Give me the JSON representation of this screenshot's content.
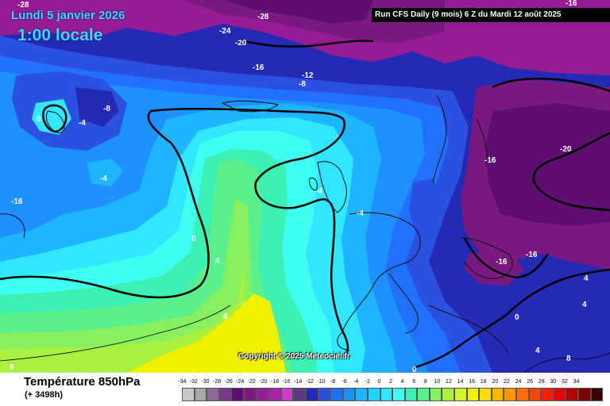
{
  "header": {
    "date": "Lundi 5 janvier 2026",
    "time": "1:00 locale",
    "run_info": "Run CFS Daily (9 mois) 6 Z du Mardi 12 août 2025"
  },
  "copyright": "Copyright © 2025 Meteociel.fr",
  "footer": {
    "parameter": "Température 850hPa",
    "lead": "(+ 3498h)"
  },
  "scale": {
    "labels": [
      "-34",
      "-32",
      "-30",
      "-28",
      "-26",
      "-24",
      "-22",
      "-20",
      "-18",
      "-16",
      "-14",
      "-12",
      "-10",
      "-8",
      "-6",
      "-4",
      "-2",
      "0",
      "2",
      "4",
      "6",
      "8",
      "10",
      "12",
      "14",
      "16",
      "18",
      "20",
      "22",
      "24",
      "26",
      "28",
      "30",
      "32",
      "34"
    ],
    "colors": [
      "#c8c8c8",
      "#a8a8a8",
      "#8c6a96",
      "#7a3a8a",
      "#5e0e6e",
      "#7a1a80",
      "#961c96",
      "#ad1fad",
      "#ce3cce",
      "#5a3a80",
      "#252ab4",
      "#2c50e0",
      "#2270ff",
      "#1e90ff",
      "#1eb4ff",
      "#23d0ff",
      "#33e6ff",
      "#3ffff0",
      "#3cf0b4",
      "#5af08c",
      "#86f060",
      "#aaf040",
      "#d4f428",
      "#f0f000",
      "#ffdc00",
      "#ffb400",
      "#ff9600",
      "#ff6e00",
      "#ff4600",
      "#ff1e00",
      "#e60000",
      "#b40000",
      "#780000",
      "#3c0000"
    ]
  },
  "map": {
    "colors": {
      "cold_extreme": "#5e0e6e",
      "cold_purple": "#7a1a80",
      "violet": "#961c96",
      "navy": "#252ab4",
      "blue_dark": "#2c50e0",
      "blue": "#2270ff",
      "blue_mid": "#1e90ff",
      "blue_light": "#1eb4ff",
      "cyan": "#33e6ff",
      "aqua": "#3ffff0",
      "mint": "#3cf0b4",
      "green": "#5af08c",
      "lime": "#86f060",
      "yellow_green": "#aaf040",
      "yellow": "#f0f000"
    },
    "isotherm_labels": [
      {
        "text": "-28"
      },
      {
        "text": "-28"
      },
      {
        "text": "-24"
      },
      {
        "text": "-20"
      },
      {
        "text": "-16"
      },
      {
        "text": "-12"
      },
      {
        "text": "-8"
      },
      {
        "text": "-16"
      },
      {
        "text": "-20"
      },
      {
        "text": "-16"
      },
      {
        "text": "0"
      },
      {
        "text": "-4"
      },
      {
        "text": "-8"
      },
      {
        "text": "-4"
      },
      {
        "text": "-16"
      },
      {
        "text": "-4"
      },
      {
        "text": "-4"
      },
      {
        "text": "0"
      },
      {
        "text": "4"
      },
      {
        "text": "8"
      },
      {
        "text": "-16"
      },
      {
        "text": "-16"
      },
      {
        "text": "4"
      },
      {
        "text": "4"
      },
      {
        "text": "0"
      },
      {
        "text": "4"
      },
      {
        "text": "8"
      },
      {
        "text": "0"
      },
      {
        "text": "8"
      }
    ]
  }
}
